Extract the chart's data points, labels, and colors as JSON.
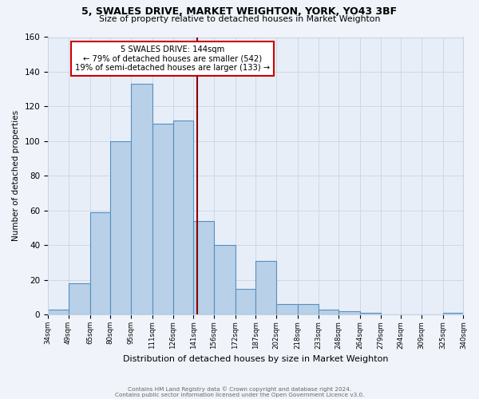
{
  "title": "5, SWALES DRIVE, MARKET WEIGHTON, YORK, YO43 3BF",
  "subtitle": "Size of property relative to detached houses in Market Weighton",
  "xlabel": "Distribution of detached houses by size in Market Weighton",
  "ylabel": "Number of detached properties",
  "bar_edges": [
    34,
    49,
    65,
    80,
    95,
    111,
    126,
    141,
    156,
    172,
    187,
    202,
    218,
    233,
    248,
    264,
    279,
    294,
    309,
    325,
    340
  ],
  "bar_heights": [
    3,
    18,
    59,
    100,
    133,
    110,
    112,
    54,
    40,
    15,
    31,
    6,
    6,
    3,
    2,
    1,
    0,
    0,
    0,
    1
  ],
  "bar_color": "#b8d0e8",
  "bar_edge_color": "#5590c0",
  "bar_linewidth": 0.8,
  "grid_color": "#c8d4e4",
  "bg_color": "#e8eef8",
  "fig_bg_color": "#f0f4fa",
  "vline_x": 144,
  "vline_color": "#8b0000",
  "vline_linewidth": 1.5,
  "annotation_title": "5 SWALES DRIVE: 144sqm",
  "annotation_line1": "← 79% of detached houses are smaller (542)",
  "annotation_line2": "19% of semi-detached houses are larger (133) →",
  "annotation_box_color": "#ffffff",
  "annotation_box_edge": "#cc0000",
  "ylim": [
    0,
    160
  ],
  "yticks": [
    0,
    20,
    40,
    60,
    80,
    100,
    120,
    140,
    160
  ],
  "xtick_labels": [
    "34sqm",
    "49sqm",
    "65sqm",
    "80sqm",
    "95sqm",
    "111sqm",
    "126sqm",
    "141sqm",
    "156sqm",
    "172sqm",
    "187sqm",
    "202sqm",
    "218sqm",
    "233sqm",
    "248sqm",
    "264sqm",
    "279sqm",
    "294sqm",
    "309sqm",
    "325sqm",
    "340sqm"
  ],
  "footer1": "Contains HM Land Registry data © Crown copyright and database right 2024.",
  "footer2": "Contains public sector information licensed under the Open Government Licence v3.0."
}
